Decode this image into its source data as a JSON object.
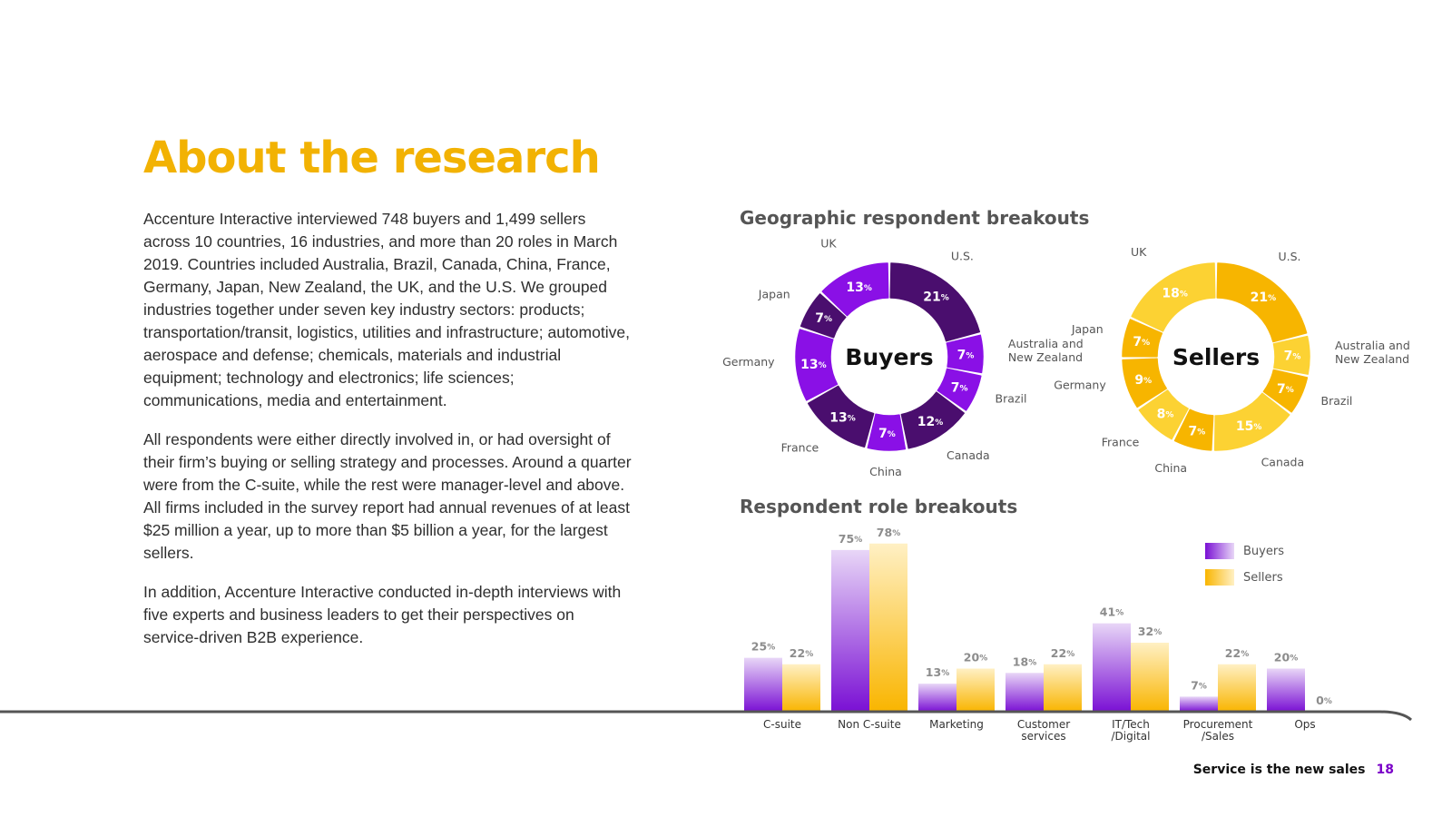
{
  "page": {
    "title": "About the research",
    "paragraphs": [
      "Accenture Interactive interviewed 748 buyers and 1,499 sellers across 10 countries, 16 industries, and more than 20 roles in March 2019. Countries included Australia, Brazil, Canada, China, France, Germany, Japan, New Zealand, the UK, and the U.S. We grouped industries together under seven key industry sectors: products; transportation/transit, logistics, utilities and infrastructure; automotive, aerospace and defense; chemicals, materials and industrial equipment; technology and electronics; life sciences; communications, media and entertainment.",
      "All respondents were either directly involved in, or had oversight of their firm’s buying or selling strategy and processes. Around a quarter were from the C-suite, while the rest were manager-level and above. All firms included in the survey report had annual revenues of at least $25 million a year, up to more than $5 billion a year, for the largest sellers.",
      "In addition, Accenture Interactive conducted in-depth interviews with five experts and business leaders to get their perspectives on service-driven B2B experience."
    ],
    "geo_title": "Geographic respondent breakouts",
    "role_title": "Respondent role breakouts",
    "footer_text": "Service is the new sales",
    "page_number": "18"
  },
  "colors": {
    "title": "#f2b203",
    "buyers_dark": "#4a0e6e",
    "buyers_bright": "#8a10e6",
    "sellers_dark": "#f7b500",
    "sellers_light": "#fcd233"
  },
  "chart_data": [
    {
      "type": "pie",
      "title": "Buyers",
      "unit": "%",
      "slices": [
        {
          "label": "U.S.",
          "value": 21,
          "tone": "dark"
        },
        {
          "label": "Australia and\nNew Zealand",
          "value": 7,
          "tone": "bright"
        },
        {
          "label": "Brazil",
          "value": 7,
          "tone": "bright"
        },
        {
          "label": "Canada",
          "value": 12,
          "tone": "dark"
        },
        {
          "label": "China",
          "value": 7,
          "tone": "bright"
        },
        {
          "label": "France",
          "value": 13,
          "tone": "dark"
        },
        {
          "label": "Germany",
          "value": 13,
          "tone": "bright"
        },
        {
          "label": "Japan",
          "value": 7,
          "tone": "dark"
        },
        {
          "label": "UK",
          "value": 13,
          "tone": "bright"
        }
      ]
    },
    {
      "type": "pie",
      "title": "Sellers",
      "unit": "%",
      "slices": [
        {
          "label": "U.S.",
          "value": 21,
          "tone": "dark"
        },
        {
          "label": "Australia and\nNew Zealand",
          "value": 7,
          "tone": "light"
        },
        {
          "label": "Brazil",
          "value": 7,
          "tone": "dark"
        },
        {
          "label": "Canada",
          "value": 15,
          "tone": "light"
        },
        {
          "label": "China",
          "value": 7,
          "tone": "dark"
        },
        {
          "label": "France",
          "value": 8,
          "tone": "light"
        },
        {
          "label": "Germany",
          "value": 9,
          "tone": "dark"
        },
        {
          "label": "Japan",
          "value": 7,
          "tone": "dark"
        },
        {
          "label": "UK",
          "value": 18,
          "tone": "light"
        }
      ]
    },
    {
      "type": "bar",
      "title": "Respondent role breakouts",
      "unit": "%",
      "categories": [
        "C-suite",
        "Non C-suite",
        "Marketing",
        "Customer\nservices",
        "IT/Tech\n/Digital",
        "Procurement\n/Sales",
        "Ops"
      ],
      "series": [
        {
          "name": "Buyers",
          "values": [
            25,
            75,
            13,
            18,
            41,
            7,
            20
          ]
        },
        {
          "name": "Sellers",
          "values": [
            22,
            78,
            20,
            22,
            32,
            22,
            0
          ]
        }
      ],
      "ylim": [
        0,
        80
      ],
      "legend": "top-right"
    }
  ]
}
